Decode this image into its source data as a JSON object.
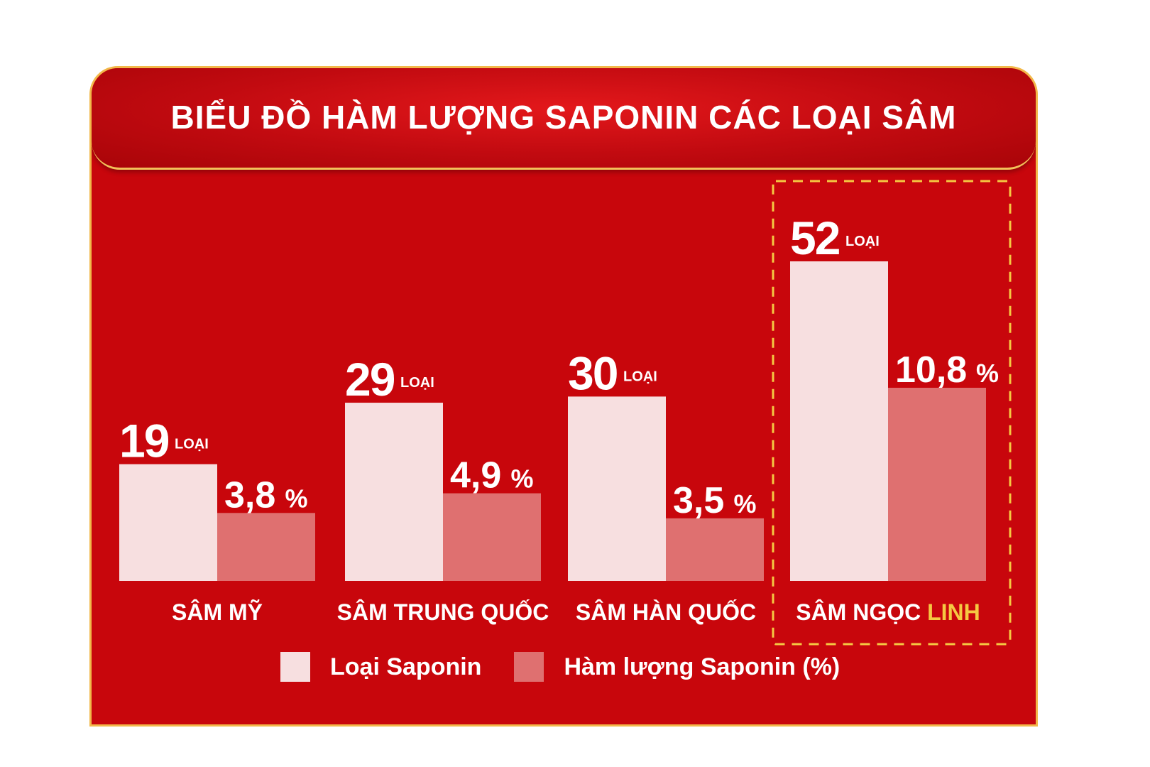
{
  "colors": {
    "background": "#c8060c",
    "border": "#f2b84a",
    "series_count": "#f7dfe0",
    "series_percent": "#df7070",
    "highlight": "#f5c842",
    "text": "#ffffff"
  },
  "chart_data": {
    "type": "bar",
    "title": "BIỂU ĐỒ HÀM LƯỢNG SAPONIN CÁC LOẠI SÂM",
    "categories": [
      {
        "prefix": "SÂM MỸ",
        "highlight": ""
      },
      {
        "prefix": "SÂM TRUNG QUỐC",
        "highlight": ""
      },
      {
        "prefix": "SÂM HÀN QUỐC",
        "highlight": ""
      },
      {
        "prefix": "SÂM NGỌC ",
        "highlight": "LINH"
      }
    ],
    "series": [
      {
        "name": "Loại Saponin",
        "values": [
          19,
          29,
          30,
          52
        ],
        "labels": [
          "19",
          "29",
          "30",
          "52"
        ],
        "unit": "LOẠI"
      },
      {
        "name": "Hàm lượng Saponin (%)",
        "values": [
          3.8,
          4.9,
          3.5,
          10.8
        ],
        "labels": [
          "3,8",
          "4,9",
          "3,5",
          "10,8"
        ],
        "unit": "%"
      }
    ],
    "highlighted_category_index": 3,
    "legend_position": "bottom",
    "grid": false
  }
}
